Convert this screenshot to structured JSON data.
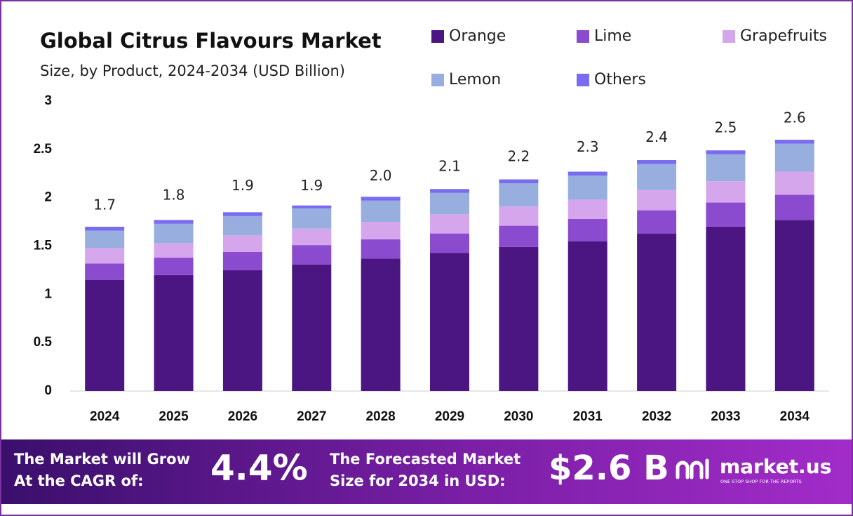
{
  "chart_data": {
    "type": "stacked-bar",
    "title": "Global Citrus Flavours Market",
    "subtitle": "Size, by Product, 2024-2034 (USD Billion)",
    "categories": [
      "2024",
      "2025",
      "2026",
      "2027",
      "2028",
      "2029",
      "2030",
      "2031",
      "2032",
      "2033",
      "2034"
    ],
    "series": [
      {
        "name": "Orange",
        "color": "#4b1682",
        "values": [
          1.15,
          1.2,
          1.25,
          1.31,
          1.37,
          1.43,
          1.49,
          1.55,
          1.63,
          1.7,
          1.77
        ]
      },
      {
        "name": "Lime",
        "color": "#8b4bcf",
        "values": [
          0.17,
          0.18,
          0.19,
          0.2,
          0.2,
          0.2,
          0.22,
          0.23,
          0.24,
          0.25,
          0.26
        ]
      },
      {
        "name": "Grapefruits",
        "color": "#d5a6ec",
        "values": [
          0.16,
          0.15,
          0.17,
          0.17,
          0.18,
          0.2,
          0.2,
          0.2,
          0.21,
          0.22,
          0.24
        ]
      },
      {
        "name": "Lemon",
        "color": "#97aede",
        "values": [
          0.18,
          0.2,
          0.2,
          0.21,
          0.22,
          0.22,
          0.24,
          0.25,
          0.27,
          0.28,
          0.29
        ]
      },
      {
        "name": "Others",
        "color": "#7a6cf0",
        "values": [
          0.04,
          0.04,
          0.04,
          0.03,
          0.04,
          0.04,
          0.04,
          0.04,
          0.04,
          0.04,
          0.04
        ]
      }
    ],
    "totals": {
      "values": [
        1.7,
        1.8,
        1.9,
        1.9,
        2.0,
        2.1,
        2.2,
        2.3,
        2.4,
        2.5,
        2.6
      ],
      "value_labels": [
        "1.7",
        "1.8",
        "1.9",
        "1.9",
        "2.0",
        "2.1",
        "2.2",
        "2.3",
        "2.4",
        "2.5",
        "2.6"
      ]
    },
    "ylim": [
      0,
      3
    ],
    "yticks": [
      0,
      0.5,
      1,
      1.5,
      2,
      2.5,
      3
    ],
    "grid": false,
    "legend": "top-right"
  },
  "footer": {
    "cagr_text": [
      "The Market will Grow",
      "At the CAGR of:"
    ],
    "cagr_value": "4.4%",
    "forecast_text": [
      "The Forecasted Market",
      "Size for 2034 in USD:"
    ],
    "forecast_value": "$2.6 B",
    "brand": "market.us",
    "tagline": "ONE STOP SHOP FOR THE REPORTS"
  }
}
